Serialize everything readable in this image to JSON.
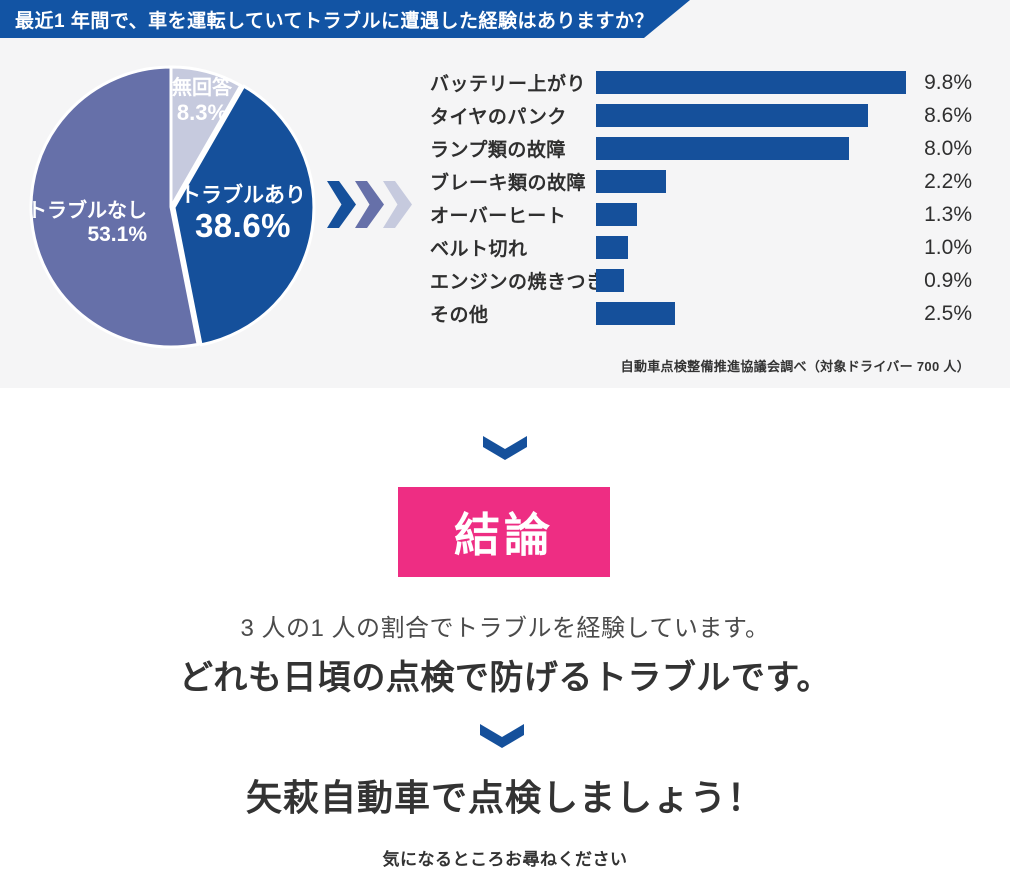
{
  "header": {
    "title": "最近1 年間で、車を運転していてトラブルに遭遇した経験はありますか？"
  },
  "colors": {
    "dark_blue": "#15509b",
    "banner_blue": "#1254a4",
    "slate_blue": "#6670a9",
    "lavender": "#c6cade",
    "pink": "#ee2d83",
    "section_bg": "#f5f5f6"
  },
  "decor": {
    "chevron_colors": [
      "#15509b",
      "#6670a9",
      "#c6cade"
    ]
  },
  "chart_data": [
    {
      "type": "pie",
      "title": "最近1 年間で、車を運転していてトラブルに遭遇した経験はありますか？",
      "start_angle": "12-oclock",
      "direction": "clockwise",
      "slices": [
        {
          "label": "無回答",
          "value": 8.3,
          "display": "8.3%",
          "color": "#c6cade"
        },
        {
          "label": "トラブルあり",
          "value": 38.6,
          "display": "38.6%",
          "color": "#15509b"
        },
        {
          "label": "トラブルなし",
          "value": 53.1,
          "display": "53.1%",
          "color": "#6670a9"
        }
      ]
    },
    {
      "type": "bar",
      "orientation": "horizontal",
      "categories": [
        "バッテリー上がり",
        "タイヤのパンク",
        "ランプ類の故障",
        "ブレーキ類の故障",
        "オーバーヒート",
        "ベルト切れ",
        "エンジンの焼きつき",
        "その他"
      ],
      "values": [
        9.8,
        8.6,
        8.0,
        2.2,
        1.3,
        1.0,
        0.9,
        2.5
      ],
      "value_labels": [
        "9.8%",
        "8.6%",
        "8.0%",
        "2.2%",
        "1.3%",
        "1.0%",
        "0.9%",
        "2.5%"
      ],
      "xlim": [
        0,
        9.8
      ],
      "bar_color": "#15509b",
      "grid": false,
      "legend": false
    }
  ],
  "source_note": "自動車点検整備推進協議会調べ（対象ドライバー 700 人）",
  "conclusion": {
    "badge_label": "結論",
    "line1": "3 人の1 人の割合でトラブルを経験しています。",
    "line2": "どれも日頃の点検で防げるトラブルです。",
    "cta": "矢萩自動車で点検しましょう！",
    "footnote": "気になるところお尋ねください"
  }
}
